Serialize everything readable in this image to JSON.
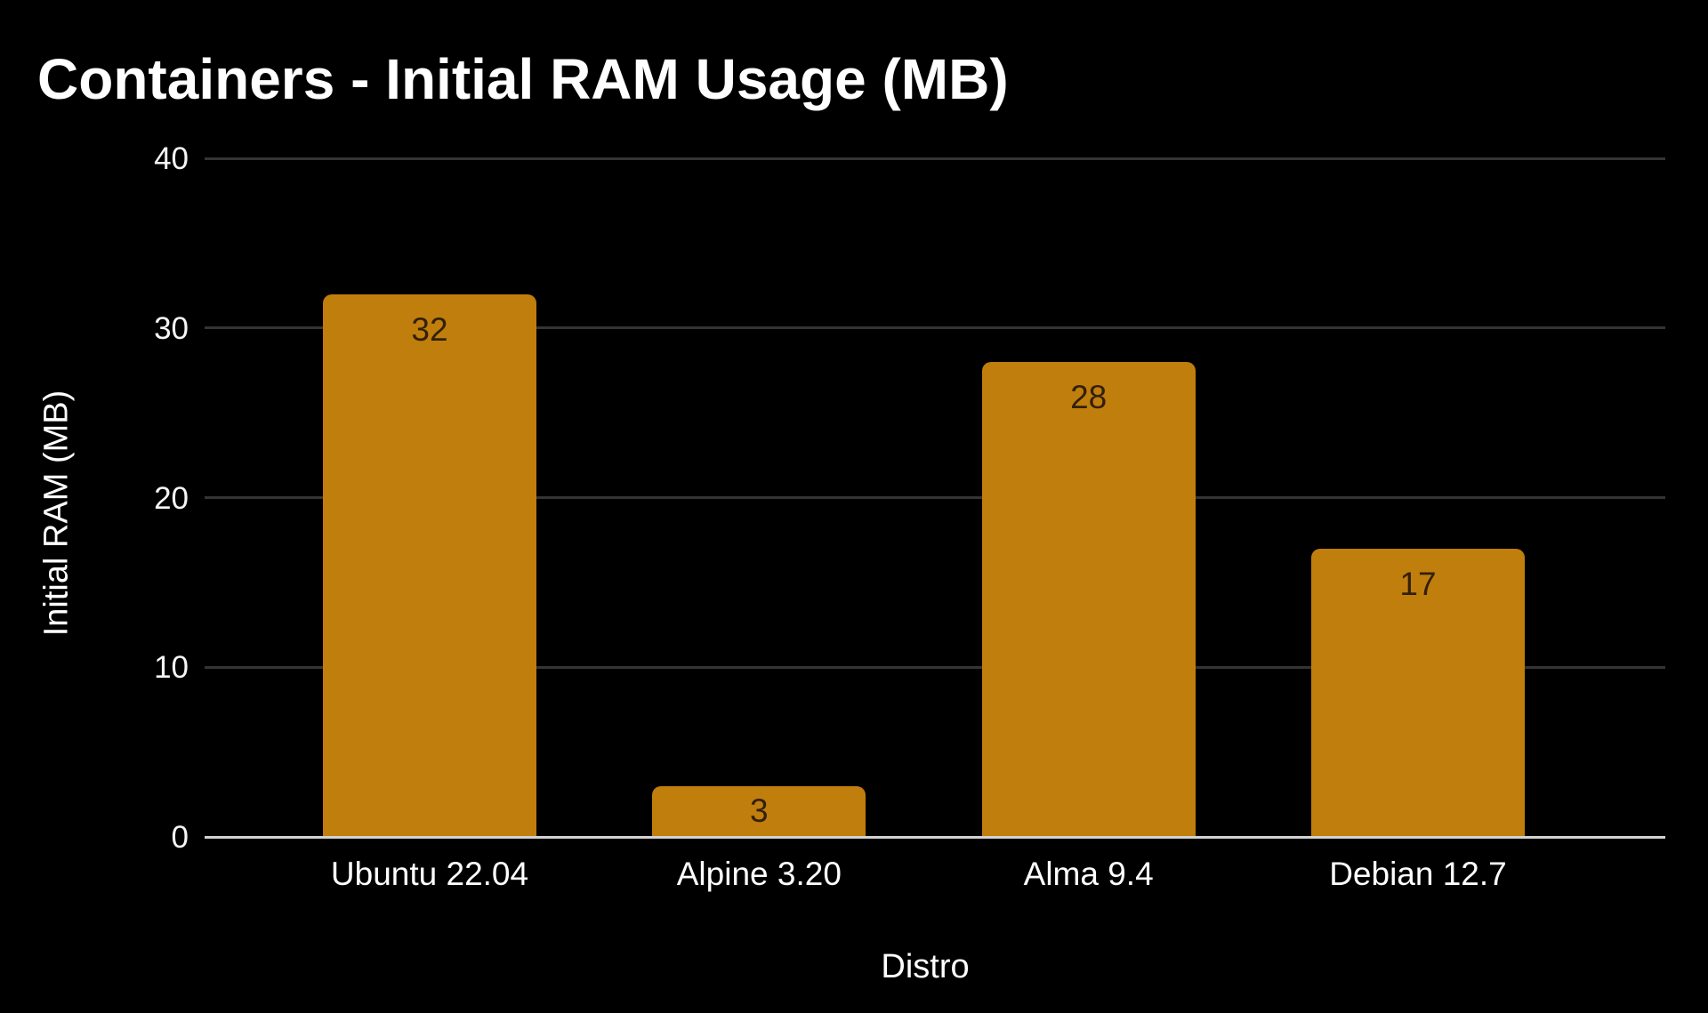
{
  "title": "Containers - Initial RAM Usage (MB)",
  "x_axis_title": "Distro",
  "y_axis_title": "Initial RAM (MB)",
  "chart_data": {
    "type": "bar",
    "title": "Containers - Initial RAM Usage (MB)",
    "categories": [
      "Ubuntu 22.04",
      "Alpine 3.20",
      "Alma 9.4",
      "Debian 12.7"
    ],
    "values": [
      32,
      3,
      28,
      17
    ],
    "xlabel": "Distro",
    "ylabel": "Initial RAM (MB)",
    "ylim": [
      0,
      40
    ],
    "yticks": [
      0,
      10,
      20,
      30,
      40
    ],
    "grid": true,
    "legend": false,
    "value_labels_shown": true,
    "colors": {
      "background": "#000000",
      "bar": "#c07e0d",
      "value_label_text": "#33200a",
      "grid_line": "#343434",
      "axis_line": "#d2d2d2",
      "tick_text": "#f5f5f5",
      "title_text": "#ffffff"
    }
  }
}
